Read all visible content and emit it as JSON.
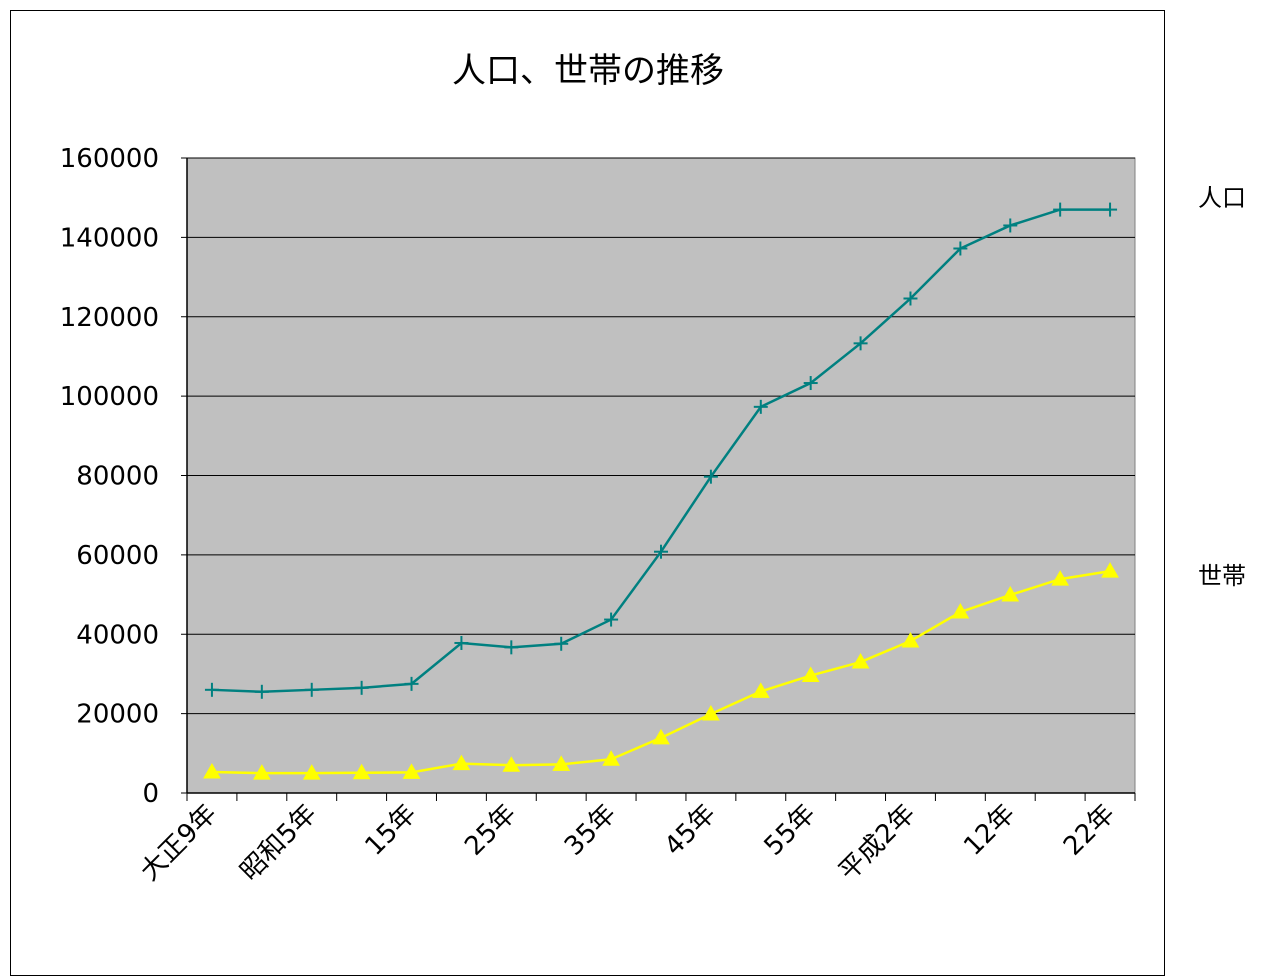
{
  "chart_data": {
    "type": "line",
    "title": "人口、世帯の推移",
    "xlabel": "",
    "ylabel": "",
    "ylim": [
      0,
      160000
    ],
    "yticks": [
      0,
      20000,
      40000,
      60000,
      80000,
      100000,
      120000,
      140000,
      160000
    ],
    "grid": true,
    "legend_position": "right",
    "categories": [
      "大正9年",
      "",
      "昭和5年",
      "",
      "15年",
      "",
      "25年",
      "",
      "35年",
      "",
      "45年",
      "",
      "55年",
      "",
      "平成2年",
      "",
      "12年",
      "",
      "22年"
    ],
    "x_tick_labels": [
      "大正9年",
      "昭和5年",
      "15年",
      "25年",
      "35年",
      "45年",
      "55年",
      "平成2年",
      "12年",
      "22年"
    ],
    "series": [
      {
        "name": "人口",
        "color": "#008080",
        "marker": "plus",
        "values": [
          26000,
          25500,
          26000,
          26500,
          27500,
          37800,
          36700,
          37600,
          43700,
          60800,
          79700,
          97300,
          103300,
          113300,
          124600,
          137200,
          143000,
          147000,
          147000
        ]
      },
      {
        "name": "世帯",
        "color": "#ffff00",
        "marker": "triangle",
        "values": [
          5300,
          5000,
          5000,
          5100,
          5200,
          7400,
          7000,
          7200,
          8500,
          13900,
          19900,
          25600,
          29600,
          33000,
          38300,
          45600,
          49900,
          53900,
          55900
        ]
      }
    ]
  },
  "colors": {
    "plot_background": "#c0c0c0",
    "gridline": "#000000"
  }
}
